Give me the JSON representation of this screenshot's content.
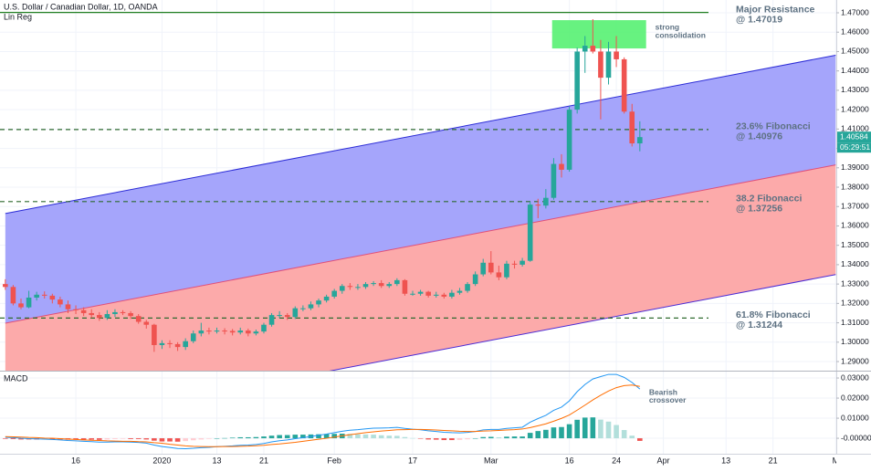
{
  "chart_data": [
    {
      "type": "candlestick",
      "title": "U.S. Dollar / Canadian Dollar, 1D, OANDA",
      "indicator_label": "Lin Reg",
      "up_color": "#26a69a",
      "down_color": "#ef5350",
      "xlim": [
        -0.68,
        106.08
      ],
      "ylim": [
        1.2853,
        1.4766
      ],
      "grid": true,
      "xticks": [
        {
          "value": 9,
          "label": "16"
        },
        {
          "value": 20,
          "label": "2020"
        },
        {
          "value": 27,
          "label": "13"
        },
        {
          "value": 33,
          "label": "21"
        },
        {
          "value": 42,
          "label": "Feb"
        },
        {
          "value": 52,
          "label": "17"
        },
        {
          "value": 62,
          "label": "Mar"
        },
        {
          "value": 72,
          "label": "16"
        },
        {
          "value": 78,
          "label": "24"
        },
        {
          "value": 84,
          "label": "Apr"
        },
        {
          "value": 92,
          "label": "13"
        },
        {
          "value": 98,
          "label": "21"
        },
        {
          "value": 106,
          "label": "M"
        }
      ],
      "yticks": [
        {
          "value": 1.47,
          "label": "1.47000"
        },
        {
          "value": 1.46,
          "label": "1.46000"
        },
        {
          "value": 1.45,
          "label": "1.45000"
        },
        {
          "value": 1.44,
          "label": "1.44000"
        },
        {
          "value": 1.43,
          "label": "1.43000"
        },
        {
          "value": 1.42,
          "label": "1.42000"
        },
        {
          "value": 1.41,
          "label": "1.41000"
        },
        {
          "value": 1.4,
          "label": "1.40000"
        },
        {
          "value": 1.39,
          "label": "1.39000"
        },
        {
          "value": 1.38,
          "label": "1.38000"
        },
        {
          "value": 1.37,
          "label": "1.37000"
        },
        {
          "value": 1.36,
          "label": "1.36000"
        },
        {
          "value": 1.35,
          "label": "1.35000"
        },
        {
          "value": 1.34,
          "label": "1.34000"
        },
        {
          "value": 1.33,
          "label": "1.33000"
        },
        {
          "value": 1.32,
          "label": "1.32000"
        },
        {
          "value": 1.31,
          "label": "1.31000"
        },
        {
          "value": 1.3,
          "label": "1.30000"
        },
        {
          "value": 1.29,
          "label": "1.29000"
        }
      ],
      "ohlc": [
        [
          1.33,
          1.3325,
          1.327,
          1.3285
        ],
        [
          1.3285,
          1.3295,
          1.319,
          1.32
        ],
        [
          1.32,
          1.3225,
          1.317,
          1.318
        ],
        [
          1.318,
          1.3265,
          1.3175,
          1.323
        ],
        [
          1.323,
          1.326,
          1.3215,
          1.3245
        ],
        [
          1.3245,
          1.3262,
          1.3225,
          1.324
        ],
        [
          1.324,
          1.325,
          1.32,
          1.322
        ],
        [
          1.322,
          1.3235,
          1.318,
          1.3195
        ],
        [
          1.3195,
          1.3215,
          1.315,
          1.317
        ],
        [
          1.317,
          1.319,
          1.3145,
          1.3165
        ],
        [
          1.3165,
          1.318,
          1.3135,
          1.315
        ],
        [
          1.315,
          1.317,
          1.3125,
          1.314
        ],
        [
          1.314,
          1.3155,
          1.311,
          1.3125
        ],
        [
          1.3125,
          1.3165,
          1.3115,
          1.3145
        ],
        [
          1.3145,
          1.317,
          1.313,
          1.3155
        ],
        [
          1.3155,
          1.3165,
          1.314,
          1.315
        ],
        [
          1.315,
          1.316,
          1.312,
          1.3135
        ],
        [
          1.3135,
          1.3145,
          1.3095,
          1.3105
        ],
        [
          1.3105,
          1.3115,
          1.307,
          1.309
        ],
        [
          1.309,
          1.3095,
          1.295,
          1.2985
        ],
        [
          1.2985,
          1.301,
          1.2965,
          1.2995
        ],
        [
          1.2995,
          1.301,
          1.297,
          1.299
        ],
        [
          1.299,
          1.3,
          1.2955,
          1.2975
        ],
        [
          1.2975,
          1.302,
          1.296,
          1.3005
        ],
        [
          1.3005,
          1.306,
          1.2995,
          1.3045
        ],
        [
          1.3045,
          1.31,
          1.303,
          1.306
        ],
        [
          1.306,
          1.3075,
          1.304,
          1.3055
        ],
        [
          1.3055,
          1.3075,
          1.3045,
          1.306
        ],
        [
          1.306,
          1.3072,
          1.304,
          1.3058
        ],
        [
          1.3058,
          1.3068,
          1.3035,
          1.305
        ],
        [
          1.305,
          1.3075,
          1.304,
          1.306
        ],
        [
          1.306,
          1.307,
          1.303,
          1.3045
        ],
        [
          1.3045,
          1.3065,
          1.3035,
          1.3055
        ],
        [
          1.3055,
          1.31,
          1.3045,
          1.309
        ],
        [
          1.309,
          1.315,
          1.308,
          1.314
        ],
        [
          1.314,
          1.316,
          1.3125,
          1.314
        ],
        [
          1.314,
          1.315,
          1.3115,
          1.313
        ],
        [
          1.313,
          1.3185,
          1.312,
          1.3175
        ],
        [
          1.3175,
          1.319,
          1.316,
          1.3175
        ],
        [
          1.3175,
          1.321,
          1.3165,
          1.3195
        ],
        [
          1.3195,
          1.3225,
          1.318,
          1.3215
        ],
        [
          1.3215,
          1.3245,
          1.3205,
          1.3235
        ],
        [
          1.3235,
          1.3275,
          1.3225,
          1.3265
        ],
        [
          1.3265,
          1.33,
          1.325,
          1.329
        ],
        [
          1.329,
          1.3305,
          1.327,
          1.3285
        ],
        [
          1.3285,
          1.33,
          1.327,
          1.3285
        ],
        [
          1.3285,
          1.331,
          1.3275,
          1.33
        ],
        [
          1.33,
          1.3315,
          1.329,
          1.3305
        ],
        [
          1.3305,
          1.332,
          1.328,
          1.329
        ],
        [
          1.329,
          1.331,
          1.328,
          1.33
        ],
        [
          1.33,
          1.333,
          1.329,
          1.332
        ],
        [
          1.332,
          1.3325,
          1.324,
          1.325
        ],
        [
          1.325,
          1.3265,
          1.324,
          1.325
        ],
        [
          1.325,
          1.327,
          1.324,
          1.326
        ],
        [
          1.326,
          1.3265,
          1.323,
          1.324
        ],
        [
          1.324,
          1.326,
          1.323,
          1.3245
        ],
        [
          1.3245,
          1.3255,
          1.3225,
          1.3235
        ],
        [
          1.3235,
          1.327,
          1.3225,
          1.3255
        ],
        [
          1.3255,
          1.328,
          1.3245,
          1.3265
        ],
        [
          1.3265,
          1.331,
          1.3255,
          1.33
        ],
        [
          1.33,
          1.3365,
          1.329,
          1.335
        ],
        [
          1.335,
          1.343,
          1.334,
          1.341
        ],
        [
          1.341,
          1.347,
          1.335,
          1.336
        ],
        [
          1.336,
          1.3395,
          1.332,
          1.3335
        ],
        [
          1.3335,
          1.342,
          1.3325,
          1.3405
        ],
        [
          1.3405,
          1.342,
          1.338,
          1.34
        ],
        [
          1.34,
          1.3435,
          1.339,
          1.342
        ],
        [
          1.342,
          1.3725,
          1.3415,
          1.371
        ],
        [
          1.371,
          1.374,
          1.364,
          1.3705
        ],
        [
          1.3705,
          1.379,
          1.369,
          1.3745
        ],
        [
          1.3745,
          1.395,
          1.3735,
          1.392
        ],
        [
          1.392,
          1.397,
          1.385,
          1.389
        ],
        [
          1.389,
          1.4215,
          1.388,
          1.42
        ],
        [
          1.42,
          1.452,
          1.418,
          1.45
        ],
        [
          1.45,
          1.458,
          1.439,
          1.453
        ],
        [
          1.453,
          1.4667,
          1.449,
          1.45
        ],
        [
          1.45,
          1.456,
          1.415,
          1.4365
        ],
        [
          1.4365,
          1.455,
          1.433,
          1.45
        ],
        [
          1.45,
          1.458,
          1.442,
          1.446
        ],
        [
          1.446,
          1.447,
          1.418,
          1.419
        ],
        [
          1.419,
          1.423,
          1.401,
          1.4026
        ],
        [
          1.4026,
          1.414,
          1.3985,
          1.40584
        ]
      ],
      "last_price": 1.40584,
      "countdown": "05:29:51",
      "lin_reg": {
        "x": [
          0,
          106
        ],
        "upper": [
          1.3664,
          1.4481
        ],
        "middle": [
          1.3098,
          1.3915
        ],
        "lower": [
          1.2532,
          1.3349
        ],
        "upper_fill": "#a5a5fb",
        "lower_fill": "#fcaaaa",
        "upper_color": "#2b2bd6",
        "middle_color": "#e0507a",
        "lower_color": "#4b2bd6"
      },
      "levels": [
        {
          "name": "Major Resistance",
          "value": 1.47019,
          "value_label": "@ 1.47019",
          "color": "#1e7d1e",
          "dashed": false
        },
        {
          "name": "23.6% Fibonacci",
          "value": 1.40976,
          "value_label": "@ 1.40976",
          "color": "#2f6a2f",
          "dashed": true
        },
        {
          "name": "38.2 Fibonacci",
          "value": 1.37256,
          "value_label": "@ 1.37256",
          "color": "#2f6a2f",
          "dashed": true
        },
        {
          "name": "61.8% Fibonacci",
          "value": 1.31244,
          "value_label": "@ 1.31244",
          "color": "#2f6a2f",
          "dashed": true
        }
      ],
      "zone": {
        "label": [
          "strong",
          "consolidation"
        ],
        "x": [
          69.8,
          81.8
        ],
        "y": [
          1.4516,
          1.4662
        ],
        "color": "#4cf06a"
      }
    },
    {
      "type": "macd",
      "title": "MACD",
      "ylim": [
        -0.0077,
        0.0332
      ],
      "yticks": [
        {
          "value": 0.03,
          "label": "0.03000"
        },
        {
          "value": 0.02,
          "label": "0.02000"
        },
        {
          "value": 0.01,
          "label": "0.01000"
        },
        {
          "value": 0,
          "label": "-0.00000"
        }
      ],
      "series": [
        {
          "name": "MACD",
          "color": "#2196f3",
          "values": [
            0.0005,
            0.0003,
            0.0,
            -0.0002,
            -0.0003,
            -0.0004,
            -0.0006,
            -0.0008,
            -0.0011,
            -0.0013,
            -0.0015,
            -0.0017,
            -0.0019,
            -0.0019,
            -0.0018,
            -0.0018,
            -0.0019,
            -0.0021,
            -0.0024,
            -0.0034,
            -0.0041,
            -0.0046,
            -0.0051,
            -0.0052,
            -0.005,
            -0.0047,
            -0.0045,
            -0.0042,
            -0.004,
            -0.0038,
            -0.0035,
            -0.0034,
            -0.0031,
            -0.0026,
            -0.0018,
            -0.0012,
            -0.0008,
            -0.0002,
            0.0003,
            0.0009,
            0.0015,
            0.0021,
            0.0028,
            0.0035,
            0.004,
            0.0043,
            0.0047,
            0.005,
            0.0051,
            0.0052,
            0.0054,
            0.0049,
            0.0045,
            0.0042,
            0.0037,
            0.0034,
            0.003,
            0.0028,
            0.0027,
            0.0029,
            0.0034,
            0.0042,
            0.0044,
            0.0044,
            0.0049,
            0.0052,
            0.0055,
            0.008,
            0.0098,
            0.0114,
            0.0139,
            0.0155,
            0.0186,
            0.0232,
            0.0268,
            0.0295,
            0.0307,
            0.0318,
            0.0318,
            0.0303,
            0.0278,
            0.0245
          ]
        },
        {
          "name": "Signal",
          "color": "#ff6d00",
          "values": [
            0.0008,
            0.0007,
            0.0006,
            0.0004,
            0.0003,
            0.0001,
            0.0,
            -0.0002,
            -0.0004,
            -0.0006,
            -0.0008,
            -0.001,
            -0.0011,
            -0.0013,
            -0.0014,
            -0.0015,
            -0.0015,
            -0.0017,
            -0.0018,
            -0.0022,
            -0.0025,
            -0.003,
            -0.0034,
            -0.0038,
            -0.004,
            -0.0041,
            -0.0042,
            -0.0042,
            -0.0041,
            -0.0041,
            -0.004,
            -0.0039,
            -0.0037,
            -0.0035,
            -0.0031,
            -0.0028,
            -0.0024,
            -0.002,
            -0.0015,
            -0.001,
            -0.0005,
            0.0,
            0.0006,
            0.0012,
            0.0018,
            0.0023,
            0.0028,
            0.0032,
            0.0036,
            0.0039,
            0.0042,
            0.0043,
            0.0044,
            0.0044,
            0.0043,
            0.0041,
            0.0039,
            0.0037,
            0.0035,
            0.0034,
            0.0034,
            0.0036,
            0.0037,
            0.0039,
            0.0041,
            0.0043,
            0.0046,
            0.0053,
            0.0062,
            0.0072,
            0.0085,
            0.0099,
            0.0116,
            0.014,
            0.0165,
            0.0191,
            0.0214,
            0.0235,
            0.0252,
            0.0262,
            0.0265,
            0.0258
          ]
        }
      ],
      "histogram": [
        -0.0003,
        -0.0004,
        -0.0006,
        -0.0006,
        -0.0006,
        -0.0005,
        -0.0006,
        -0.0006,
        -0.0007,
        -0.0007,
        -0.0007,
        -0.0007,
        -0.0008,
        -0.0006,
        -0.0004,
        -0.0003,
        -0.0004,
        -0.0004,
        -0.0006,
        -0.0012,
        -0.0016,
        -0.0016,
        -0.0017,
        -0.0014,
        -0.001,
        -0.0006,
        -0.0003,
        0.0,
        0.0001,
        0.0003,
        0.0005,
        0.0005,
        0.0006,
        0.0009,
        0.0013,
        0.0016,
        0.0016,
        0.0018,
        0.0018,
        0.0019,
        0.002,
        0.0021,
        0.0022,
        0.0023,
        0.0022,
        0.002,
        0.0019,
        0.0018,
        0.0015,
        0.0013,
        0.0012,
        0.0006,
        0.0001,
        -0.0002,
        -0.0006,
        -0.0007,
        -0.0009,
        -0.0009,
        -0.0008,
        -0.0005,
        0.0,
        0.0006,
        0.0007,
        0.0005,
        0.0008,
        0.0009,
        0.0009,
        0.0027,
        0.0036,
        0.0042,
        0.0054,
        0.0056,
        0.007,
        0.0092,
        0.0103,
        0.0104,
        0.0093,
        0.0083,
        0.0066,
        0.0041,
        0.0013,
        -0.0013
      ],
      "histogram_colors": {
        "up_growing": "#26a69a",
        "up_falling": "#b2dfdb",
        "down_falling": "#ef5350",
        "down_growing": "#ffcdd2"
      },
      "annotation": [
        "Bearish",
        "crossover"
      ]
    }
  ]
}
